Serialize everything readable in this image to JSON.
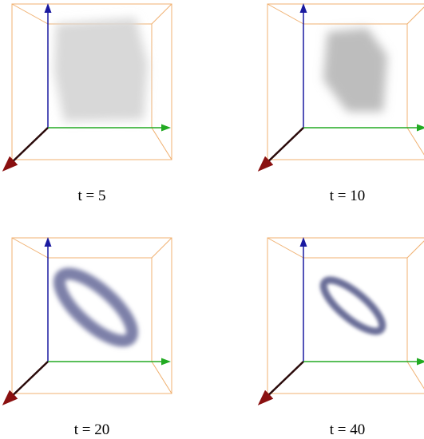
{
  "panels": [
    {
      "caption": "t = 5"
    },
    {
      "caption": "t = 10"
    },
    {
      "caption": "t = 20"
    },
    {
      "caption": "t = 40"
    }
  ]
}
